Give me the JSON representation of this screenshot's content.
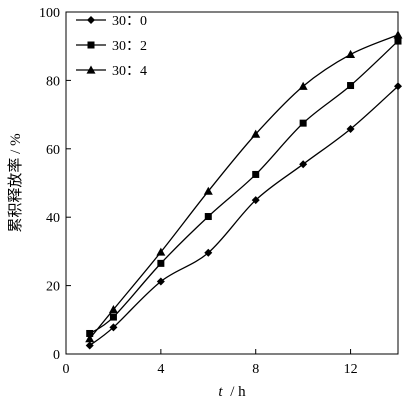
{
  "chart_data": {
    "type": "line",
    "xlabel_var": "t",
    "xlabel_unit": "/ h",
    "ylabel": "累积释放率 / %",
    "xlim": [
      0,
      14
    ],
    "ylim": [
      0,
      100
    ],
    "x_ticks": [
      0,
      4,
      8,
      12
    ],
    "y_ticks": [
      0,
      20,
      40,
      60,
      80,
      100
    ],
    "grid": false,
    "legend_position": "top-left",
    "series": [
      {
        "name": "30：0",
        "marker": "diamond",
        "color": "#000000",
        "x": [
          1,
          2,
          4,
          6,
          8,
          10,
          12,
          14
        ],
        "y": [
          2.5,
          7.8,
          21.2,
          29.6,
          45.0,
          55.5,
          65.8,
          78.3
        ]
      },
      {
        "name": "30：2",
        "marker": "square",
        "color": "#000000",
        "x": [
          1,
          2,
          4,
          6,
          8,
          10,
          12,
          14
        ],
        "y": [
          6.0,
          10.8,
          26.5,
          40.2,
          52.5,
          67.5,
          78.5,
          91.5
        ]
      },
      {
        "name": "30：4",
        "marker": "triangle",
        "color": "#000000",
        "x": [
          1,
          2,
          4,
          6,
          8,
          10,
          12,
          14
        ],
        "y": [
          4.5,
          13.0,
          29.8,
          47.6,
          64.3,
          78.3,
          87.6,
          93.3
        ]
      }
    ]
  }
}
